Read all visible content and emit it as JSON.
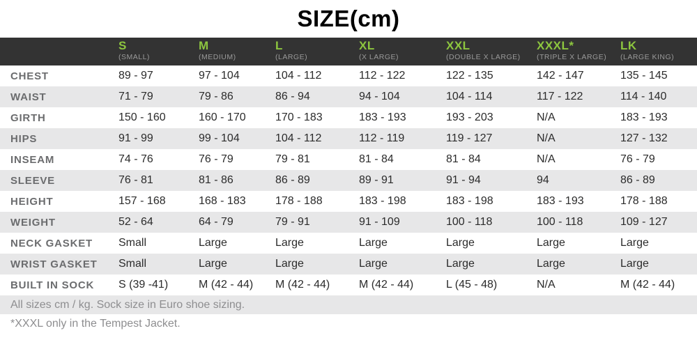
{
  "title": "SIZE(cm)",
  "colors": {
    "header_bg": "#333333",
    "size_green": "#8DC63F",
    "subtitle_gray": "#9A9A9A",
    "row_stripe": "#E7E7E8",
    "label_gray": "#6B6C6E",
    "data_text": "#2B2B2B"
  },
  "columns": [
    {
      "code": "S",
      "subtitle": "(SMALL)"
    },
    {
      "code": "M",
      "subtitle": "(MEDIUM)"
    },
    {
      "code": "L",
      "subtitle": "(LARGE)"
    },
    {
      "code": "XL",
      "subtitle": "(X LARGE)"
    },
    {
      "code": "XXL",
      "subtitle": "(DOUBLE X LARGE)"
    },
    {
      "code": "XXXL*",
      "subtitle": "(TRIPLE X LARGE)"
    },
    {
      "code": "LK",
      "subtitle": "(LARGE KING)"
    }
  ],
  "rows": [
    {
      "label": "CHEST",
      "values": [
        "89 - 97",
        "97 - 104",
        "104 - 112",
        "112 - 122",
        "122 - 135",
        "142 - 147",
        "135 - 145"
      ]
    },
    {
      "label": "WAIST",
      "values": [
        "71 - 79",
        "79 - 86",
        "86 - 94",
        "94 - 104",
        "104 - 114",
        "117 - 122",
        "114 - 140"
      ]
    },
    {
      "label": "GIRTH",
      "values": [
        "150 - 160",
        "160 - 170",
        "170 - 183",
        "183 - 193",
        "193 - 203",
        "N/A",
        "183 - 193"
      ]
    },
    {
      "label": "HIPS",
      "values": [
        "91 - 99",
        "99 - 104",
        "104 - 112",
        "112 - 119",
        "119 - 127",
        "N/A",
        "127 - 132"
      ]
    },
    {
      "label": "INSEAM",
      "values": [
        "74 - 76",
        "76 - 79",
        "79 - 81",
        "81 - 84",
        "81 - 84",
        "N/A",
        "76 - 79"
      ]
    },
    {
      "label": "SLEEVE",
      "values": [
        "76 - 81",
        "81 - 86",
        "86 - 89",
        "89 - 91",
        "91 - 94",
        "94",
        "86 - 89"
      ]
    },
    {
      "label": "HEIGHT",
      "values": [
        "157 - 168",
        "168 - 183",
        "178 - 188",
        "183 - 198",
        "183 - 198",
        "183 - 193",
        "178 - 188"
      ]
    },
    {
      "label": "WEIGHT",
      "values": [
        "52 - 64",
        "64 - 79",
        "79 - 91",
        "91 - 109",
        "100 - 118",
        "100 - 118",
        "109 - 127"
      ]
    },
    {
      "label": "NECK GASKET",
      "values": [
        "Small",
        "Large",
        "Large",
        "Large",
        "Large",
        "Large",
        "Large"
      ]
    },
    {
      "label": "WRIST GASKET",
      "values": [
        "Small",
        "Large",
        "Large",
        "Large",
        "Large",
        "Large",
        "Large"
      ]
    },
    {
      "label": "BUILT IN SOCK",
      "values": [
        "S (39 -41)",
        "M (42 - 44)",
        "M (42 - 44)",
        "M (42 - 44)",
        "L (45 - 48)",
        "N/A",
        "M (42 - 44)"
      ]
    }
  ],
  "notes": [
    "All sizes cm / kg. Sock size in Euro shoe sizing.",
    "*XXXL only in the Tempest Jacket."
  ]
}
